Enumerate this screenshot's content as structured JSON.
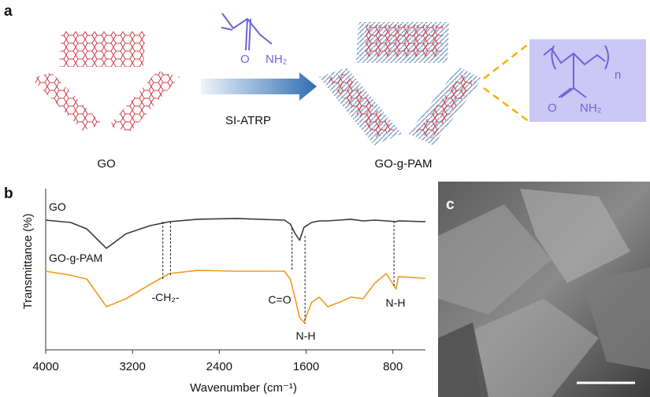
{
  "panel_a": {
    "label": "a",
    "go_label": "GO",
    "reaction_label": "SI-ATRP",
    "product_label": "GO-g-PAM",
    "monomer_o": "O",
    "monomer_nh2": "NH₂",
    "polymer_o": "O",
    "polymer_nh2": "NH₂",
    "polymer_n": "n"
  },
  "panel_b": {
    "label": "b"
  },
  "panel_c": {
    "label": "c"
  },
  "chart_data": {
    "type": "line",
    "xlabel": "Wavenumber (cm⁻¹)",
    "ylabel": "Transmittance (%)",
    "xlim": [
      4000,
      500
    ],
    "ylim": [
      0,
      100
    ],
    "xticks": [
      4000,
      3200,
      2400,
      1600,
      800
    ],
    "x": [
      4000,
      3770,
      3620,
      3440,
      3260,
      3040,
      2860,
      2600,
      2240,
      1800,
      1745,
      1700,
      1660,
      1620,
      1550,
      1480,
      1400,
      1300,
      1185,
      1075,
      965,
      860,
      770,
      750,
      500
    ],
    "series": [
      {
        "name": "GO",
        "color": "#3a3a3a",
        "values": [
          80.5,
          79,
          75,
          63,
          72,
          77,
          79.5,
          81,
          81.5,
          80.5,
          78,
          72,
          68,
          76,
          79,
          80,
          80,
          80.5,
          81,
          80,
          80.5,
          80,
          79.5,
          80,
          79.5
        ]
      },
      {
        "name": "GO-g-PAM",
        "color": "#f39a1e",
        "values": [
          48.8,
          46.3,
          43.9,
          26.8,
          31.7,
          40.5,
          47.3,
          49.3,
          48.8,
          48.8,
          43.9,
          31.7,
          20,
          17.1,
          29.3,
          32.7,
          26.8,
          29.3,
          32.7,
          31.7,
          41.5,
          47.3,
          37.6,
          45.4,
          44.4
        ]
      }
    ],
    "reference_lines": [
      2920,
      2850,
      1730,
      1610,
      790
    ],
    "annotations": [
      "-CH₂-",
      "C=O",
      "N-H",
      "N-H"
    ]
  }
}
